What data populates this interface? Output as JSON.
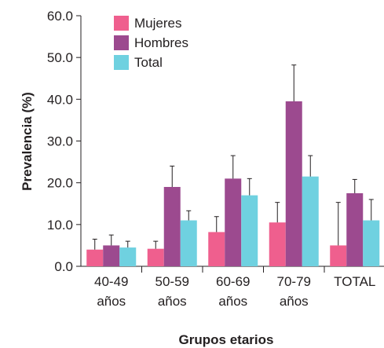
{
  "chart_data": {
    "type": "bar",
    "ylabel": "Prevalencia (%)",
    "xlabel": "Grupos etarios",
    "ylim": [
      0,
      60
    ],
    "yticks": [
      "0.0",
      "10.0",
      "20.0",
      "30.0",
      "40.0",
      "50.0",
      "60.0"
    ],
    "categories": [
      [
        "40-49",
        "años"
      ],
      [
        "50-59",
        "años"
      ],
      [
        "60-69",
        "años"
      ],
      [
        "70-79",
        "años"
      ],
      [
        "TOTAL"
      ]
    ],
    "legend_position": "top-left",
    "error_bars": "upper",
    "series": [
      {
        "name": "Mujeres",
        "color": "#ef5f8e",
        "values": [
          4.0,
          4.2,
          8.2,
          10.5,
          5.0
        ],
        "errors": [
          2.5,
          1.8,
          3.7,
          4.8,
          10.3
        ]
      },
      {
        "name": "Hombres",
        "color": "#9c4a8f",
        "values": [
          5.0,
          19.0,
          21.0,
          39.5,
          17.5
        ],
        "errors": [
          2.5,
          5.0,
          5.5,
          8.7,
          3.3
        ]
      },
      {
        "name": "Total",
        "color": "#6fd1e0",
        "values": [
          4.5,
          11.0,
          17.0,
          21.5,
          11.0
        ],
        "errors": [
          1.5,
          2.3,
          4.0,
          5.0,
          5.0
        ]
      }
    ]
  }
}
